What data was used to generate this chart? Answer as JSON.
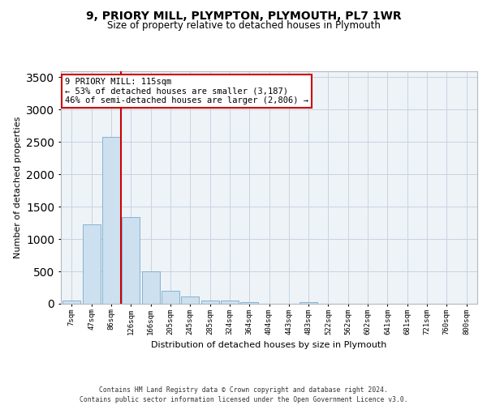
{
  "title_line1": "9, PRIORY MILL, PLYMPTON, PLYMOUTH, PL7 1WR",
  "title_line2": "Size of property relative to detached houses in Plymouth",
  "xlabel": "Distribution of detached houses by size in Plymouth",
  "ylabel": "Number of detached properties",
  "bar_labels": [
    "7sqm",
    "47sqm",
    "86sqm",
    "126sqm",
    "166sqm",
    "205sqm",
    "245sqm",
    "285sqm",
    "324sqm",
    "364sqm",
    "404sqm",
    "443sqm",
    "483sqm",
    "522sqm",
    "562sqm",
    "602sqm",
    "641sqm",
    "681sqm",
    "721sqm",
    "760sqm",
    "800sqm"
  ],
  "bar_values": [
    55,
    1230,
    2580,
    1340,
    500,
    195,
    110,
    55,
    45,
    30,
    0,
    0,
    30,
    0,
    0,
    0,
    0,
    0,
    0,
    0,
    0
  ],
  "bar_color": "#cce0f0",
  "bar_edge_color": "#7aaac8",
  "grid_color": "#c8d4e0",
  "background_color": "#eef3f8",
  "annotation_text": "9 PRIORY MILL: 115sqm\n← 53% of detached houses are smaller (3,187)\n46% of semi-detached houses are larger (2,806) →",
  "annotation_box_color": "#ffffff",
  "annotation_box_edge": "#cc0000",
  "vline_x_index": 2.5,
  "vline_color": "#cc0000",
  "ylim": [
    0,
    3600
  ],
  "yticks": [
    0,
    500,
    1000,
    1500,
    2000,
    2500,
    3000,
    3500
  ],
  "footer_line1": "Contains HM Land Registry data © Crown copyright and database right 2024.",
  "footer_line2": "Contains public sector information licensed under the Open Government Licence v3.0."
}
